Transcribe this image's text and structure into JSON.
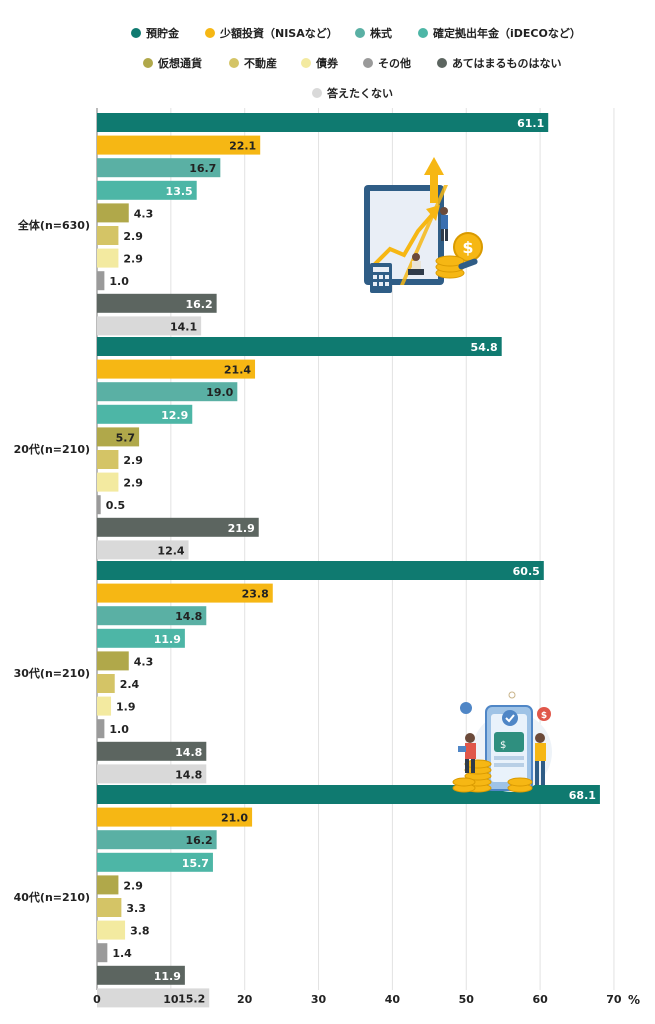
{
  "chart_data": {
    "type": "bar",
    "orientation": "horizontal",
    "title": "",
    "xlabel": "",
    "ylabel": "",
    "unit": "%",
    "xlim": [
      0,
      70
    ],
    "x_ticks": [
      0,
      10,
      20,
      30,
      40,
      50,
      60,
      70
    ],
    "grid": true,
    "legend_position": "top",
    "categories": [
      "全体(n=630)",
      "20代(n=210)",
      "30代(n=210)",
      "40代(n=210)"
    ],
    "series": [
      {
        "name": "預貯金",
        "color": "#0f7a70",
        "label_color": "#ffffff",
        "values": [
          61.1,
          54.8,
          60.5,
          68.1
        ]
      },
      {
        "name": "少額投資（NISAなど）",
        "color": "#f6b714",
        "label_color": "#222222",
        "values": [
          22.1,
          21.4,
          23.8,
          21.0
        ]
      },
      {
        "name": "株式",
        "color": "#5ab0a4",
        "label_color": "#222222",
        "values": [
          16.7,
          19.0,
          14.8,
          16.2
        ]
      },
      {
        "name": "確定拠出年金（iDECOなど）",
        "color": "#4db6a6",
        "label_color": "#ffffff",
        "values": [
          13.5,
          12.9,
          11.9,
          15.7
        ]
      },
      {
        "name": "仮想通貨",
        "color": "#b0a84a",
        "label_color": "#222222",
        "values": [
          4.3,
          5.7,
          4.3,
          2.9
        ]
      },
      {
        "name": "不動産",
        "color": "#d4c466",
        "label_color": "#222222",
        "values": [
          2.9,
          2.9,
          2.4,
          3.3
        ]
      },
      {
        "name": "債券",
        "color": "#f3eaa0",
        "label_color": "#222222",
        "values": [
          2.9,
          2.9,
          1.9,
          3.8
        ]
      },
      {
        "name": "その他",
        "color": "#9a9a9a",
        "label_color": "#222222",
        "values": [
          1.0,
          0.5,
          1.0,
          1.4
        ]
      },
      {
        "name": "あてはまるものはない",
        "color": "#5c6560",
        "label_color": "#ffffff",
        "values": [
          16.2,
          21.9,
          14.8,
          11.9
        ]
      },
      {
        "name": "答えたくない",
        "color": "#d9d9d9",
        "label_color": "#222222",
        "values": [
          14.1,
          12.4,
          14.8,
          15.2
        ]
      }
    ],
    "illustrations": [
      "growth-chart-illustration",
      "mobile-payment-illustration"
    ]
  }
}
